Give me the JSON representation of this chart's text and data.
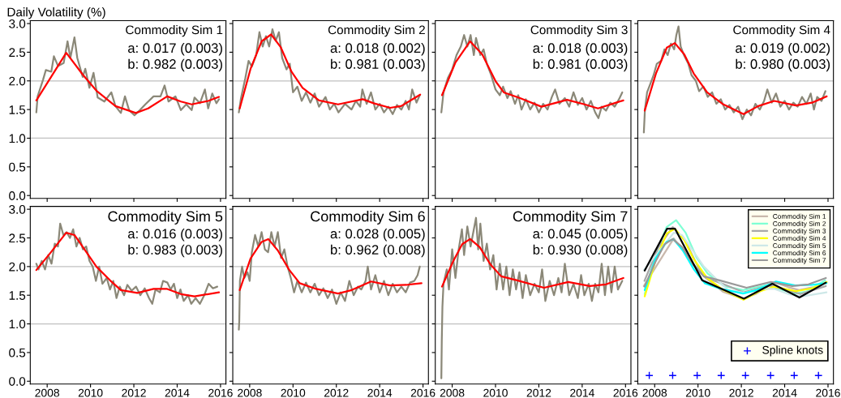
{
  "chart_data": [
    {
      "type": "line",
      "title": "Commodity Sim 1",
      "ylabel": "Daily Volatility (%)",
      "annotations": [
        "a: 0.017 (0.003)",
        "b: 0.982 (0.003)"
      ],
      "tick_labels": "y",
      "xlim": [
        2007.22,
        2016.25
      ],
      "ylim": [
        -0.05,
        3.05
      ],
      "xticks": [
        2008,
        2010,
        2012,
        2014,
        2016
      ],
      "yticks": [
        {
          "value": 0,
          "label": "0.0"
        },
        {
          "value": 0.5,
          "label": "0.5"
        },
        {
          "value": 1,
          "label": "1.0"
        },
        {
          "value": 1.5,
          "label": "1.5"
        },
        {
          "value": 2,
          "label": "2.0"
        },
        {
          "value": 2.5,
          "label": "2.5"
        },
        {
          "value": 3,
          "label": "3.0"
        }
      ],
      "ref_lines": [
        {
          "axis": "y",
          "value": 1,
          "color": "#c0c0c0"
        },
        {
          "axis": "y",
          "value": 2,
          "color": "#c0c0c0"
        }
      ],
      "series": [
        {
          "type": "line",
          "color": "#8b8878",
          "x": [
            2007.5,
            2007.56,
            2007.81,
            2007.94,
            2008.19,
            2008.31,
            2008.5,
            2008.76,
            2008.94,
            2009.07,
            2009.26,
            2009.39,
            2009.64,
            2009.76,
            2009.95,
            2010.14,
            2010.33,
            2010.64,
            2010.96,
            2011.15,
            2011.4,
            2011.59,
            2011.78,
            2012.03,
            2012.28,
            2012.53,
            2012.91,
            2013.23,
            2013.42,
            2013.6,
            2013.92,
            2014.17,
            2014.42,
            2014.67,
            2014.8,
            2015.05,
            2015.28,
            2015.43,
            2015.62,
            2015.81,
            2015.93
          ],
          "values": [
            1.45,
            1.73,
            2.02,
            2.19,
            2.16,
            2.43,
            2.26,
            2.31,
            2.69,
            2.4,
            2.76,
            2.4,
            2.07,
            2.21,
            1.88,
            2.14,
            1.71,
            1.64,
            1.8,
            1.56,
            1.44,
            1.73,
            1.49,
            1.4,
            1.49,
            1.59,
            1.73,
            1.73,
            1.92,
            1.64,
            1.73,
            1.49,
            1.59,
            1.49,
            1.71,
            1.61,
            1.85,
            1.52,
            1.78,
            1.61,
            1.68
          ]
        },
        {
          "type": "line",
          "color": "#ff0000",
          "x": [
            2007.5,
            2008.88,
            2009.64,
            2010.27,
            2011.15,
            2012.09,
            2012.66,
            2013.54,
            2014.17,
            2014.67,
            2015.43,
            2015.93
          ],
          "values": [
            1.66,
            2.49,
            2.11,
            1.83,
            1.56,
            1.44,
            1.52,
            1.73,
            1.64,
            1.59,
            1.65,
            1.72
          ]
        }
      ]
    },
    {
      "type": "line",
      "title": "Commodity Sim 2",
      "annotations": [
        "a: 0.018 (0.002)",
        "b: 0.981 (0.003)"
      ],
      "tick_labels": false,
      "xlim": [
        2007.22,
        2016.25
      ],
      "ylim": [
        -0.05,
        3.05
      ],
      "xticks": [
        2008,
        2010,
        2012,
        2014,
        2016
      ],
      "yticks": [
        {
          "value": 0,
          "label": null
        },
        {
          "value": 0.5,
          "label": null
        },
        {
          "value": 1,
          "label": null
        },
        {
          "value": 1.5,
          "label": null
        },
        {
          "value": 2,
          "label": null
        },
        {
          "value": 2.5,
          "label": null
        },
        {
          "value": 3,
          "label": null
        }
      ],
      "ref_lines": [
        {
          "axis": "y",
          "value": 1,
          "color": "#c0c0c0"
        },
        {
          "axis": "y",
          "value": 2,
          "color": "#c0c0c0"
        }
      ],
      "series": [
        {
          "type": "line",
          "color": "#8b8878",
          "x": [
            2007.5,
            2007.6,
            2007.8,
            2007.95,
            2008.1,
            2008.3,
            2008.45,
            2008.6,
            2008.75,
            2008.9,
            2009.05,
            2009.2,
            2009.35,
            2009.5,
            2009.7,
            2009.85,
            2010.0,
            2010.2,
            2010.4,
            2010.6,
            2010.8,
            2011.0,
            2011.2,
            2011.5,
            2011.7,
            2011.9,
            2012.1,
            2012.4,
            2012.7,
            2012.9,
            2013.1,
            2013.2,
            2013.4,
            2013.6,
            2013.8,
            2014.0,
            2014.2,
            2014.4,
            2014.6,
            2014.8,
            2015.0,
            2015.2,
            2015.35,
            2015.5,
            2015.7,
            2015.85
          ],
          "values": [
            1.45,
            1.7,
            2.05,
            2.35,
            2.25,
            2.45,
            2.85,
            2.6,
            2.78,
            2.6,
            2.9,
            2.7,
            2.85,
            2.4,
            2.2,
            2.3,
            1.8,
            1.9,
            1.65,
            1.8,
            1.62,
            1.78,
            1.55,
            1.72,
            1.5,
            1.6,
            1.45,
            1.6,
            1.5,
            1.65,
            1.55,
            1.85,
            1.6,
            1.8,
            1.5,
            1.6,
            1.45,
            1.55,
            1.42,
            1.58,
            1.5,
            1.65,
            1.5,
            1.85,
            1.62,
            1.75
          ]
        },
        {
          "type": "line",
          "color": "#ff0000",
          "x": [
            2007.54,
            2008.04,
            2008.55,
            2008.99,
            2009.43,
            2009.93,
            2010.44,
            2011.2,
            2012.08,
            2013.22,
            2013.72,
            2014.48,
            2014.99,
            2015.87
          ],
          "values": [
            1.52,
            2.21,
            2.69,
            2.81,
            2.59,
            2.16,
            1.88,
            1.66,
            1.59,
            1.68,
            1.61,
            1.53,
            1.56,
            1.76
          ]
        }
      ]
    },
    {
      "type": "line",
      "title": "Commodity Sim 3",
      "annotations": [
        "a: 0.018 (0.003)",
        "b: 0.981 (0.003)"
      ],
      "tick_labels": false,
      "xlim": [
        2007.22,
        2016.25
      ],
      "ylim": [
        -0.05,
        3.05
      ],
      "xticks": [
        2008,
        2010,
        2012,
        2014,
        2016
      ],
      "yticks": [
        {
          "value": 0,
          "label": null
        },
        {
          "value": 0.5,
          "label": null
        },
        {
          "value": 1,
          "label": null
        },
        {
          "value": 1.5,
          "label": null
        },
        {
          "value": 2,
          "label": null
        },
        {
          "value": 2.5,
          "label": null
        },
        {
          "value": 3,
          "label": null
        }
      ],
      "ref_lines": [
        {
          "axis": "y",
          "value": 1,
          "color": "#c0c0c0"
        },
        {
          "axis": "y",
          "value": 2,
          "color": "#c0c0c0"
        }
      ],
      "series": [
        {
          "type": "line",
          "color": "#8b8878",
          "x": [
            2007.5,
            2007.6,
            2007.8,
            2008.0,
            2008.2,
            2008.4,
            2008.55,
            2008.7,
            2008.85,
            2009.0,
            2009.1,
            2009.3,
            2009.45,
            2009.6,
            2009.8,
            2010.0,
            2010.2,
            2010.35,
            2010.55,
            2010.7,
            2010.9,
            2011.05,
            2011.2,
            2011.4,
            2011.6,
            2011.8,
            2012.0,
            2012.2,
            2012.4,
            2012.6,
            2012.75,
            2012.95,
            2013.2,
            2013.4,
            2013.6,
            2013.8,
            2014.0,
            2014.2,
            2014.4,
            2014.6,
            2014.75,
            2014.9,
            2015.1,
            2015.3,
            2015.5,
            2015.7,
            2015.85
          ],
          "values": [
            1.45,
            1.8,
            2.05,
            2.2,
            2.45,
            2.6,
            2.8,
            2.6,
            2.8,
            2.45,
            2.75,
            2.45,
            2.55,
            2.3,
            2.1,
            1.85,
            1.75,
            1.9,
            1.7,
            1.82,
            1.6,
            1.75,
            1.5,
            1.68,
            1.5,
            1.62,
            1.45,
            1.6,
            1.5,
            1.72,
            1.85,
            1.6,
            1.7,
            1.55,
            1.8,
            1.58,
            1.7,
            1.5,
            1.65,
            1.45,
            1.35,
            1.55,
            1.48,
            1.62,
            1.55,
            1.68,
            1.8
          ]
        },
        {
          "type": "line",
          "color": "#ff0000",
          "x": [
            2007.53,
            2008.15,
            2008.83,
            2009.39,
            2010.01,
            2010.38,
            2011.13,
            2012.12,
            2013.3,
            2014.11,
            2014.73,
            2015.9
          ],
          "values": [
            1.75,
            2.32,
            2.69,
            2.46,
            1.99,
            1.8,
            1.7,
            1.55,
            1.67,
            1.59,
            1.52,
            1.66
          ]
        }
      ]
    },
    {
      "type": "line",
      "title": "Commodity Sim 4",
      "annotations": [
        "a: 0.019 (0.002)",
        "b: 0.980 (0.003)"
      ],
      "tick_labels": false,
      "xlim": [
        2007.22,
        2016.25
      ],
      "ylim": [
        -0.05,
        3.05
      ],
      "xticks": [
        2008,
        2010,
        2012,
        2014,
        2016
      ],
      "yticks": [
        {
          "value": 0,
          "label": null
        },
        {
          "value": 0.5,
          "label": null
        },
        {
          "value": 1,
          "label": null
        },
        {
          "value": 1.5,
          "label": null
        },
        {
          "value": 2,
          "label": null
        },
        {
          "value": 2.5,
          "label": null
        },
        {
          "value": 3,
          "label": null
        }
      ],
      "ref_lines": [
        {
          "axis": "y",
          "value": 1,
          "color": "#c0c0c0"
        },
        {
          "axis": "y",
          "value": 2,
          "color": "#c0c0c0"
        }
      ],
      "series": [
        {
          "type": "line",
          "color": "#8b8878",
          "x": [
            2007.5,
            2007.55,
            2007.65,
            2007.8,
            2007.95,
            2008.1,
            2008.3,
            2008.45,
            2008.6,
            2008.75,
            2008.9,
            2009.0,
            2009.1,
            2009.2,
            2009.35,
            2009.55,
            2009.7,
            2009.9,
            2010.05,
            2010.25,
            2010.45,
            2010.65,
            2010.85,
            2011.05,
            2011.25,
            2011.45,
            2011.65,
            2011.85,
            2012.05,
            2012.25,
            2012.45,
            2012.65,
            2012.85,
            2013.05,
            2013.2,
            2013.4,
            2013.6,
            2013.8,
            2014.0,
            2014.2,
            2014.4,
            2014.6,
            2014.8,
            2015.0,
            2015.2,
            2015.35,
            2015.5,
            2015.7,
            2015.88
          ],
          "values": [
            1.1,
            1.5,
            1.8,
            1.95,
            2.1,
            2.3,
            2.35,
            2.55,
            2.45,
            2.65,
            2.55,
            2.8,
            2.95,
            2.6,
            2.45,
            2.3,
            2.1,
            2.0,
            1.82,
            1.9,
            1.72,
            1.8,
            1.6,
            1.68,
            1.5,
            1.58,
            1.45,
            1.55,
            1.33,
            1.5,
            1.4,
            1.6,
            1.5,
            1.65,
            1.85,
            1.62,
            1.78,
            1.55,
            1.65,
            1.5,
            1.62,
            1.55,
            1.72,
            1.6,
            1.78,
            1.5,
            1.72,
            1.65,
            1.82
          ]
        },
        {
          "type": "line",
          "color": "#ff0000",
          "x": [
            2007.54,
            2008.06,
            2008.56,
            2008.93,
            2009.37,
            2009.8,
            2010.42,
            2011.17,
            2012.1,
            2012.78,
            2013.52,
            2014.52,
            2015.26,
            2015.94
          ],
          "values": [
            1.48,
            2.13,
            2.58,
            2.66,
            2.46,
            2.13,
            1.8,
            1.59,
            1.42,
            1.56,
            1.65,
            1.57,
            1.62,
            1.73
          ]
        }
      ]
    },
    {
      "type": "line",
      "title": "Commodity Sim 5",
      "annotations": [
        "a: 0.016 (0.003)",
        "b: 0.983 (0.003)"
      ],
      "xlim": [
        2007.22,
        2016.25
      ],
      "ylim": [
        -0.05,
        3.05
      ],
      "xticks": [
        2008,
        2010,
        2012,
        2014,
        2016
      ],
      "yticks": [
        {
          "value": 0,
          "label": "0.0"
        },
        {
          "value": 0.5,
          "label": "0.5"
        },
        {
          "value": 1,
          "label": "1.0"
        },
        {
          "value": 1.5,
          "label": "1.5"
        },
        {
          "value": 2,
          "label": "2.0"
        },
        {
          "value": 2.5,
          "label": "2.5"
        },
        {
          "value": 3,
          "label": "3.0"
        }
      ],
      "ref_lines": [
        {
          "axis": "y",
          "value": 1,
          "color": "#c0c0c0"
        },
        {
          "axis": "y",
          "value": 2,
          "color": "#c0c0c0"
        }
      ],
      "series": [
        {
          "type": "line",
          "color": "#8b8878",
          "x": [
            2007.5,
            2007.6,
            2007.75,
            2007.9,
            2008.05,
            2008.2,
            2008.35,
            2008.5,
            2008.6,
            2008.75,
            2008.9,
            2009.05,
            2009.2,
            2009.35,
            2009.5,
            2009.65,
            2009.8,
            2009.95,
            2010.1,
            2010.25,
            2010.4,
            2010.55,
            2010.75,
            2010.9,
            2011.05,
            2011.2,
            2011.35,
            2011.55,
            2011.7,
            2011.9,
            2012.1,
            2012.3,
            2012.5,
            2012.7,
            2012.85,
            2013.0,
            2013.2,
            2013.35,
            2013.55,
            2013.7,
            2013.85,
            2014.0,
            2014.15,
            2014.3,
            2014.5,
            2014.65,
            2014.85,
            2015.05,
            2015.25,
            2015.45,
            2015.65,
            2015.85
          ],
          "values": [
            2.05,
            1.95,
            2.1,
            1.95,
            2.2,
            2.05,
            2.4,
            2.35,
            2.75,
            2.55,
            2.6,
            2.5,
            2.65,
            2.35,
            2.5,
            2.3,
            2.35,
            2.1,
            2.0,
            1.75,
            2.0,
            1.7,
            1.8,
            1.6,
            1.75,
            1.45,
            1.65,
            1.5,
            1.68,
            1.58,
            1.65,
            1.5,
            1.62,
            1.45,
            1.35,
            1.6,
            1.55,
            1.75,
            1.72,
            1.6,
            1.7,
            1.45,
            1.6,
            1.4,
            1.5,
            1.35,
            1.45,
            1.35,
            1.5,
            1.7,
            1.62,
            1.65
          ]
        },
        {
          "type": "line",
          "color": "#ff0000",
          "x": [
            2007.5,
            2008.13,
            2008.88,
            2009.26,
            2009.76,
            2010.27,
            2010.9,
            2011.4,
            2012.16,
            2012.91,
            2013.54,
            2014.17,
            2014.8,
            2015.93
          ],
          "values": [
            1.94,
            2.23,
            2.59,
            2.55,
            2.28,
            2.0,
            1.76,
            1.59,
            1.54,
            1.61,
            1.61,
            1.52,
            1.48,
            1.55
          ]
        }
      ]
    },
    {
      "type": "line",
      "title": "Commodity Sim 6",
      "annotations": [
        "a: 0.028 (0.005)",
        "b: 0.962 (0.008)"
      ],
      "tick_labels": "x",
      "xlim": [
        2007.22,
        2016.25
      ],
      "ylim": [
        -0.05,
        3.05
      ],
      "xticks": [
        2008,
        2010,
        2012,
        2014,
        2016
      ],
      "yticks": [
        {
          "value": 0,
          "label": null
        },
        {
          "value": 0.5,
          "label": null
        },
        {
          "value": 1,
          "label": null
        },
        {
          "value": 1.5,
          "label": null
        },
        {
          "value": 2,
          "label": null
        },
        {
          "value": 2.5,
          "label": null
        },
        {
          "value": 3,
          "label": null
        }
      ],
      "ref_lines": [
        {
          "axis": "y",
          "value": 1,
          "color": "#c0c0c0"
        },
        {
          "axis": "y",
          "value": 2,
          "color": "#c0c0c0"
        }
      ],
      "series": [
        {
          "type": "line",
          "color": "#8b8878",
          "x": [
            2007.5,
            2007.52,
            2007.55,
            2007.65,
            2007.75,
            2007.9,
            2008.0,
            2008.1,
            2008.25,
            2008.4,
            2008.55,
            2008.7,
            2008.85,
            2009.0,
            2009.15,
            2009.3,
            2009.45,
            2009.6,
            2009.75,
            2009.9,
            2010.05,
            2010.2,
            2010.4,
            2010.6,
            2010.8,
            2011.0,
            2011.2,
            2011.4,
            2011.6,
            2011.8,
            2012.0,
            2012.2,
            2012.4,
            2012.6,
            2012.8,
            2013.0,
            2013.15,
            2013.35,
            2013.45,
            2013.6,
            2013.8,
            2014.0,
            2014.2,
            2014.4,
            2014.6,
            2014.8,
            2015.0,
            2015.2,
            2015.4,
            2015.6,
            2015.75,
            2015.85
          ],
          "values": [
            0.9,
            1.05,
            1.75,
            2.0,
            1.8,
            1.9,
            1.75,
            2.25,
            2.55,
            2.35,
            2.6,
            2.3,
            2.25,
            2.6,
            2.35,
            2.6,
            2.15,
            2.3,
            2.0,
            1.8,
            1.55,
            1.75,
            1.55,
            1.72,
            1.55,
            1.7,
            1.5,
            1.62,
            1.45,
            1.6,
            1.35,
            1.55,
            1.4,
            1.75,
            1.5,
            1.65,
            1.6,
            1.75,
            2.0,
            1.6,
            1.85,
            1.55,
            1.75,
            1.5,
            1.7,
            1.55,
            1.65,
            1.55,
            1.72,
            1.75,
            1.85,
            2.0
          ]
        },
        {
          "type": "line",
          "color": "#ff0000",
          "x": [
            2007.54,
            2008.04,
            2008.55,
            2008.86,
            2009.3,
            2009.81,
            2010.31,
            2011.07,
            2012.08,
            2012.71,
            2013.6,
            2014.48,
            2015.24,
            2015.93
          ],
          "values": [
            1.59,
            2.14,
            2.43,
            2.48,
            2.28,
            1.95,
            1.71,
            1.61,
            1.53,
            1.59,
            1.74,
            1.67,
            1.68,
            1.71
          ]
        }
      ]
    },
    {
      "type": "line",
      "title": "Commodity Sim 7",
      "annotations": [
        "a: 0.045 (0.005)",
        "b: 0.930 (0.008)"
      ],
      "tick_labels": "x",
      "xlim": [
        2007.22,
        2016.25
      ],
      "ylim": [
        -0.05,
        3.05
      ],
      "xticks": [
        2008,
        2010,
        2012,
        2014,
        2016
      ],
      "yticks": [
        {
          "value": 0,
          "label": null
        },
        {
          "value": 0.5,
          "label": null
        },
        {
          "value": 1,
          "label": null
        },
        {
          "value": 1.5,
          "label": null
        },
        {
          "value": 2,
          "label": null
        },
        {
          "value": 2.5,
          "label": null
        },
        {
          "value": 3,
          "label": null
        }
      ],
      "ref_lines": [
        {
          "axis": "y",
          "value": 1,
          "color": "#c0c0c0"
        },
        {
          "axis": "y",
          "value": 2,
          "color": "#c0c0c0"
        }
      ],
      "series": [
        {
          "type": "line",
          "color": "#8b8878",
          "x": [
            2007.5,
            2007.52,
            2007.55,
            2007.6,
            2007.75,
            2007.85,
            2008.0,
            2008.15,
            2008.3,
            2008.45,
            2008.55,
            2008.7,
            2008.85,
            2008.95,
            2009.1,
            2009.2,
            2009.3,
            2009.45,
            2009.6,
            2009.75,
            2009.9,
            2010.05,
            2010.2,
            2010.35,
            2010.5,
            2010.65,
            2010.8,
            2010.95,
            2011.1,
            2011.25,
            2011.4,
            2011.6,
            2011.8,
            2012.0,
            2012.15,
            2012.3,
            2012.5,
            2012.7,
            2012.9,
            2013.05,
            2013.2,
            2013.4,
            2013.6,
            2013.8,
            2013.95,
            2014.1,
            2014.3,
            2014.45,
            2014.6,
            2014.75,
            2014.9,
            2015.05,
            2015.2,
            2015.35,
            2015.5,
            2015.65,
            2015.85
          ],
          "values": [
            0.05,
            0.7,
            1.3,
            1.7,
            1.95,
            1.6,
            2.3,
            1.8,
            2.3,
            2.65,
            2.2,
            2.7,
            2.35,
            2.55,
            2.85,
            2.3,
            2.75,
            2.1,
            2.4,
            1.95,
            2.2,
            1.6,
            2.05,
            1.6,
            2.0,
            1.5,
            1.95,
            1.6,
            1.9,
            1.45,
            1.85,
            1.5,
            1.7,
            1.55,
            1.95,
            1.4,
            1.75,
            1.5,
            1.8,
            1.55,
            2.05,
            1.5,
            1.7,
            1.45,
            1.85,
            1.5,
            1.7,
            1.4,
            1.7,
            1.55,
            2.05,
            1.5,
            2.0,
            1.55,
            2.0,
            1.6,
            1.75
          ]
        },
        {
          "type": "line",
          "color": "#ff0000",
          "x": [
            2007.53,
            2008.03,
            2008.46,
            2008.83,
            2009.27,
            2009.76,
            2010.26,
            2011.0,
            2012.24,
            2013.36,
            2014.35,
            2015.1,
            2015.9
          ],
          "values": [
            1.65,
            2.08,
            2.39,
            2.48,
            2.34,
            2.04,
            1.83,
            1.76,
            1.63,
            1.73,
            1.66,
            1.69,
            1.8
          ]
        }
      ]
    },
    {
      "type": "line",
      "tick_labels": "x",
      "legend": "top right",
      "xlim": [
        2007.22,
        2016.25
      ],
      "ylim": [
        -0.05,
        3.05
      ],
      "xticks": [
        2008,
        2010,
        2012,
        2014,
        2016
      ],
      "yticks": [
        {
          "value": 0,
          "label": null
        },
        {
          "value": 0.5,
          "label": null
        },
        {
          "value": 1,
          "label": null
        },
        {
          "value": 1.5,
          "label": null
        },
        {
          "value": 2,
          "label": null
        },
        {
          "value": 2.5,
          "label": null
        },
        {
          "value": 3,
          "label": null
        }
      ],
      "series": [
        {
          "type": "line",
          "name": "Commodity Sim 1",
          "color": "#c9b8ac",
          "x": [
            2007.5,
            2008.88,
            2009.64,
            2010.27,
            2011.15,
            2012.09,
            2012.66,
            2013.54,
            2014.17,
            2014.67,
            2015.43,
            2015.93
          ],
          "values": [
            1.66,
            2.49,
            2.11,
            1.83,
            1.56,
            1.44,
            1.52,
            1.73,
            1.64,
            1.59,
            1.65,
            1.72
          ]
        },
        {
          "type": "line",
          "name": "Commodity Sim 2",
          "color": "#7fffd4",
          "x": [
            2007.54,
            2008.04,
            2008.55,
            2008.99,
            2009.43,
            2009.93,
            2010.44,
            2011.2,
            2012.08,
            2013.22,
            2013.72,
            2014.48,
            2014.99,
            2015.87
          ],
          "values": [
            1.52,
            2.21,
            2.69,
            2.81,
            2.59,
            2.16,
            1.88,
            1.66,
            1.59,
            1.68,
            1.61,
            1.53,
            1.56,
            1.76
          ]
        },
        {
          "type": "line",
          "name": "Commodity Sim 3",
          "color": "#a9a9a9",
          "x": [
            2007.53,
            2008.15,
            2008.83,
            2009.39,
            2010.01,
            2010.38,
            2011.13,
            2012.12,
            2013.3,
            2014.11,
            2014.73,
            2015.9
          ],
          "values": [
            1.75,
            2.32,
            2.69,
            2.46,
            1.99,
            1.8,
            1.7,
            1.55,
            1.67,
            1.59,
            1.52,
            1.66
          ]
        },
        {
          "type": "line",
          "name": "Commodity Sim 4",
          "color": "#ffff00",
          "x": [
            2007.54,
            2008.06,
            2008.56,
            2008.93,
            2009.37,
            2009.8,
            2010.42,
            2011.17,
            2012.1,
            2012.78,
            2013.52,
            2014.52,
            2015.26,
            2015.94
          ],
          "values": [
            1.48,
            2.13,
            2.58,
            2.66,
            2.46,
            2.13,
            1.8,
            1.59,
            1.42,
            1.56,
            1.65,
            1.57,
            1.62,
            1.73
          ]
        },
        {
          "type": "line",
          "name": "Commodity Sim 5",
          "color": "#cde8e8",
          "x": [
            2007.5,
            2008.13,
            2008.88,
            2009.26,
            2009.76,
            2010.27,
            2010.9,
            2011.4,
            2012.16,
            2012.91,
            2013.54,
            2014.17,
            2014.8,
            2015.93
          ],
          "values": [
            1.94,
            2.23,
            2.59,
            2.55,
            2.28,
            2.0,
            1.76,
            1.59,
            1.54,
            1.61,
            1.61,
            1.52,
            1.48,
            1.55
          ]
        },
        {
          "type": "line",
          "name": "Commodity Sim 6",
          "color": "#00ffff",
          "x": [
            2007.54,
            2008.04,
            2008.55,
            2008.86,
            2009.3,
            2009.81,
            2010.31,
            2011.07,
            2012.08,
            2012.71,
            2013.6,
            2014.48,
            2015.24,
            2015.93
          ],
          "values": [
            1.59,
            2.14,
            2.43,
            2.48,
            2.28,
            1.95,
            1.71,
            1.61,
            1.53,
            1.59,
            1.74,
            1.67,
            1.68,
            1.71
          ]
        },
        {
          "type": "line",
          "name": "Commodity Sim 7",
          "color": "#999999",
          "x": [
            2007.53,
            2008.03,
            2008.46,
            2008.83,
            2009.27,
            2009.76,
            2010.26,
            2011.0,
            2012.24,
            2013.36,
            2014.35,
            2015.1,
            2015.9
          ],
          "values": [
            1.65,
            2.08,
            2.39,
            2.48,
            2.34,
            2.04,
            1.83,
            1.76,
            1.63,
            1.73,
            1.66,
            1.69,
            1.8
          ]
        },
        {
          "type": "line",
          "color": "#000000",
          "x": [
            2007.54,
            2008.57,
            2008.94,
            2010.19,
            2012.12,
            2013.43,
            2014.68,
            2015.9
          ],
          "values": [
            1.93,
            2.66,
            2.66,
            1.76,
            1.44,
            1.7,
            1.46,
            1.72
          ]
        },
        {
          "type": "scatter",
          "name": "Spline knots",
          "color": "#0000ff",
          "marker": "cross",
          "x": [
            2007.75,
            2008.83,
            2009.96,
            2011.07,
            2012.19,
            2013.35,
            2014.44,
            2015.56
          ],
          "values": [
            0.1,
            0.1,
            0.1,
            0.1,
            0.1,
            0.1,
            0.1,
            0.1
          ]
        }
      ]
    }
  ]
}
